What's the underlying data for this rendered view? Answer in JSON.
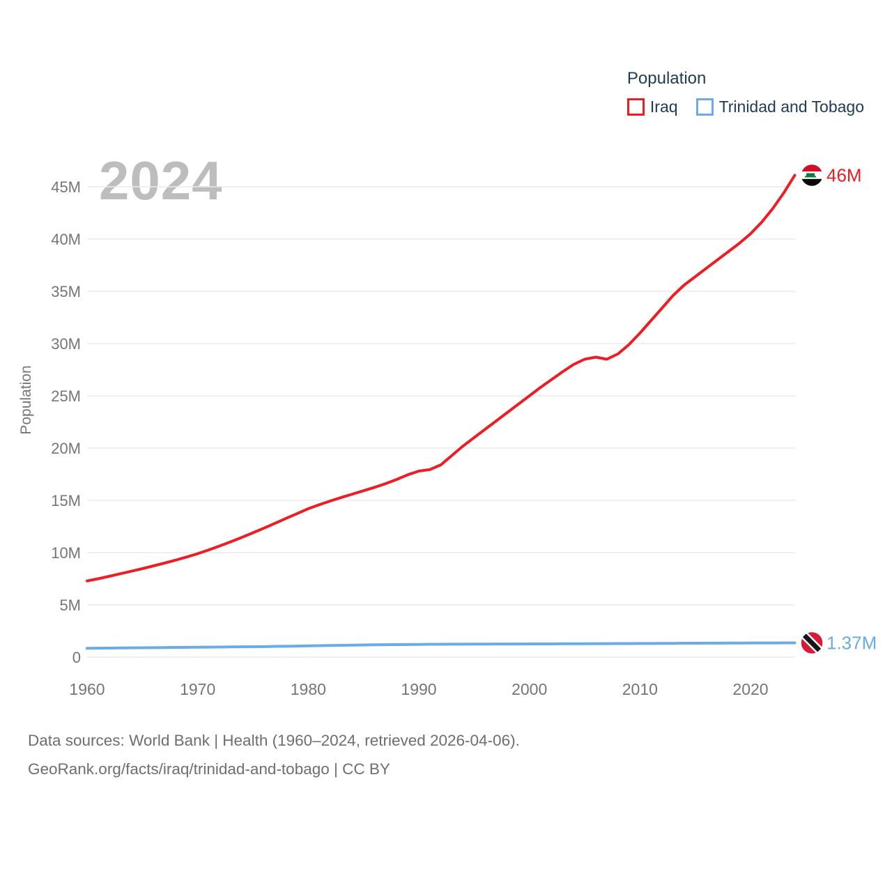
{
  "watermark": "2024",
  "legend": {
    "title": "Population",
    "items": [
      {
        "label": "Iraq",
        "color": "#ee1d23"
      },
      {
        "label": "Trinidad and Tobago",
        "color": "#6aabe8"
      }
    ]
  },
  "y_axis": {
    "title": "Population",
    "ticks": [
      "0",
      "5M",
      "10M",
      "15M",
      "20M",
      "25M",
      "30M",
      "35M",
      "40M",
      "45M"
    ]
  },
  "x_axis": {
    "ticks": [
      1960,
      1970,
      1980,
      1990,
      2000,
      2010,
      2020
    ]
  },
  "end_labels": [
    {
      "series": "Iraq",
      "label": "46M",
      "color": "#ee1d23",
      "flag": "iraq"
    },
    {
      "series": "Trinidad and Tobago",
      "label": "1.37M",
      "color": "#6aabe8",
      "flag": "trinidad-and-tobago"
    }
  ],
  "flag_colors": {
    "iraq": {
      "red": "#ce1126",
      "white": "#ffffff",
      "black": "#090909",
      "green": "#0e7a3d"
    },
    "trinidad_and_tobago": {
      "red": "#da1a35",
      "black": "#161616",
      "white": "#ffffff"
    }
  },
  "footer": {
    "line1": "Data sources: World Bank | Health (1960–2024, retrieved 2026-04-06).",
    "line2": "GeoRank.org/facts/iraq/trinidad-and-tobago | CC BY"
  },
  "chart_data": {
    "type": "line",
    "title": "Population",
    "xlabel": "",
    "ylabel": "Population",
    "units": "millions of people",
    "xlim": [
      1960,
      2024
    ],
    "ylim": [
      0,
      46.5
    ],
    "grid": "horizontal",
    "legend_position": "top-right",
    "x": [
      1960,
      1961,
      1962,
      1963,
      1964,
      1965,
      1966,
      1967,
      1968,
      1969,
      1970,
      1971,
      1972,
      1973,
      1974,
      1975,
      1976,
      1977,
      1978,
      1979,
      1980,
      1981,
      1982,
      1983,
      1984,
      1985,
      1986,
      1987,
      1988,
      1989,
      1990,
      1991,
      1992,
      1993,
      1994,
      1995,
      1996,
      1997,
      1998,
      1999,
      2000,
      2001,
      2002,
      2003,
      2004,
      2005,
      2006,
      2007,
      2008,
      2009,
      2010,
      2011,
      2012,
      2013,
      2014,
      2015,
      2016,
      2017,
      2018,
      2019,
      2020,
      2021,
      2022,
      2023,
      2024
    ],
    "series": [
      {
        "name": "Iraq",
        "color": "#ee1d23",
        "end_value_label": "46M",
        "values": [
          7.29,
          7.5,
          7.73,
          7.98,
          8.22,
          8.47,
          8.73,
          9.0,
          9.28,
          9.58,
          9.9,
          10.26,
          10.64,
          11.04,
          11.46,
          11.9,
          12.35,
          12.81,
          13.28,
          13.74,
          14.2,
          14.58,
          14.94,
          15.28,
          15.6,
          15.92,
          16.25,
          16.6,
          17.0,
          17.45,
          17.8,
          17.95,
          18.4,
          19.3,
          20.2,
          21.0,
          21.8,
          22.6,
          23.4,
          24.2,
          25.0,
          25.8,
          26.55,
          27.3,
          28.0,
          28.5,
          28.7,
          28.5,
          29.0,
          29.9,
          31.0,
          32.2,
          33.4,
          34.6,
          35.6,
          36.4,
          37.2,
          38.0,
          38.8,
          39.6,
          40.5,
          41.6,
          42.9,
          44.4,
          46.1
        ]
      },
      {
        "name": "Trinidad and Tobago",
        "color": "#6aabe8",
        "end_value_label": "1.37M",
        "values": [
          0.85,
          0.86,
          0.87,
          0.88,
          0.89,
          0.9,
          0.91,
          0.92,
          0.93,
          0.94,
          0.95,
          0.96,
          0.97,
          0.98,
          0.99,
          1.0,
          1.01,
          1.03,
          1.04,
          1.06,
          1.08,
          1.1,
          1.12,
          1.13,
          1.15,
          1.17,
          1.18,
          1.19,
          1.2,
          1.21,
          1.22,
          1.23,
          1.23,
          1.24,
          1.24,
          1.25,
          1.25,
          1.26,
          1.26,
          1.26,
          1.27,
          1.27,
          1.27,
          1.28,
          1.28,
          1.28,
          1.29,
          1.29,
          1.3,
          1.3,
          1.31,
          1.31,
          1.32,
          1.32,
          1.33,
          1.33,
          1.34,
          1.34,
          1.35,
          1.35,
          1.36,
          1.36,
          1.36,
          1.37,
          1.37
        ]
      }
    ]
  }
}
